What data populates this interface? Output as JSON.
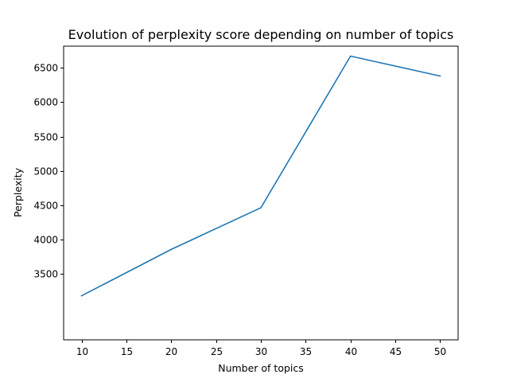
{
  "chart_data": {
    "type": "line",
    "title": "Evolution of perplexity score depending on number of topics",
    "xlabel": "Number of topics",
    "ylabel": "Perplexity",
    "x": [
      10,
      20,
      30,
      40,
      50
    ],
    "series": [
      {
        "values": [
          3185,
          3860,
          4465,
          6670,
          6380
        ],
        "color": "#1f77b4"
      }
    ],
    "xlim": [
      8,
      52
    ],
    "ylim": [
      2545,
      6815
    ],
    "xticks": [
      10,
      15,
      20,
      25,
      30,
      35,
      40,
      45,
      50
    ],
    "yticks": [
      3500,
      4000,
      4500,
      5000,
      5500,
      6000,
      6500
    ],
    "grid": false
  }
}
